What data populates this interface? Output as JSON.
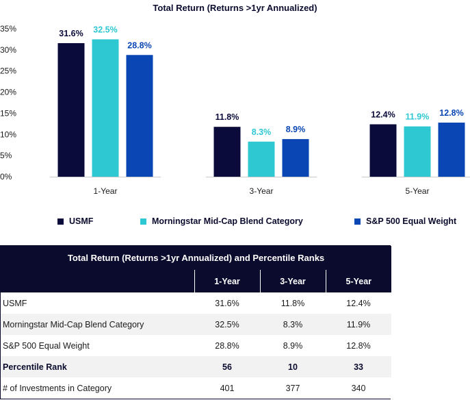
{
  "chart_data": {
    "type": "bar",
    "title": "Total Return (Returns >1yr Annualized)",
    "categories": [
      "1-Year",
      "3-Year",
      "5-Year"
    ],
    "series": [
      {
        "name": "USMF",
        "values": [
          31.6,
          11.8,
          12.4
        ],
        "color": "#0b0b3b"
      },
      {
        "name": "Morningstar Mid-Cap Blend Category",
        "values": [
          32.5,
          8.3,
          11.9
        ],
        "color": "#2ec8d3"
      },
      {
        "name": "S&P 500 Equal Weight",
        "values": [
          28.8,
          8.9,
          12.8
        ],
        "color": "#0a46b4"
      }
    ],
    "value_labels": [
      [
        "31.6%",
        "11.8%",
        "12.4%"
      ],
      [
        "32.5%",
        "8.3%",
        "11.9%"
      ],
      [
        "28.8%",
        "8.9%",
        "12.8%"
      ]
    ],
    "ylim": [
      0,
      35
    ],
    "yticks": [
      "0%",
      "5%",
      "10%",
      "15%",
      "20%",
      "25%",
      "30%",
      "35%"
    ],
    "grid": false,
    "legend_position": "bottom"
  },
  "table": {
    "title": "Total Return (Returns >1yr Annualized) and Percentile Ranks",
    "columns": [
      "1-Year",
      "3-Year",
      "5-Year"
    ],
    "rows": [
      {
        "label": "USMF",
        "values": [
          "31.6%",
          "11.8%",
          "12.4%"
        ],
        "bold": false
      },
      {
        "label": "Morningstar Mid-Cap Blend Category",
        "values": [
          "32.5%",
          "8.3%",
          "11.9%"
        ],
        "bold": false
      },
      {
        "label": "S&P 500 Equal Weight",
        "values": [
          "28.8%",
          "8.9%",
          "12.8%"
        ],
        "bold": false
      },
      {
        "label": "Percentile Rank",
        "values": [
          "56",
          "10",
          "33"
        ],
        "bold": true
      },
      {
        "label": "# of Investments in Category",
        "values": [
          "401",
          "377",
          "340"
        ],
        "bold": false
      }
    ]
  }
}
